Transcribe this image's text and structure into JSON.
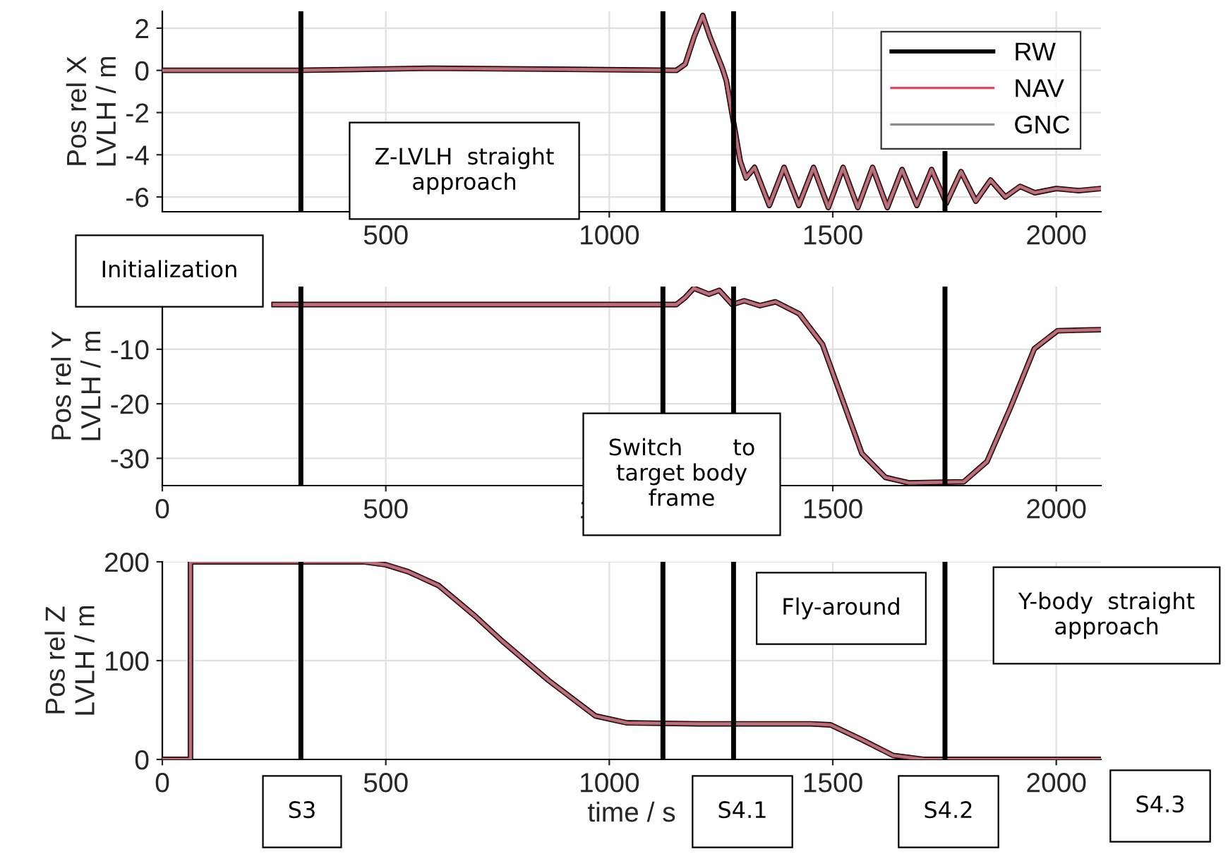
{
  "chart_data": [
    {
      "type": "line",
      "ylabel": "Pos rel X\nLVLH / m",
      "xlim": [
        0,
        2100
      ],
      "xticks": [
        500,
        1000,
        1500,
        2000
      ],
      "ylim": [
        -6.7,
        2.8
      ],
      "yticks": [
        -6,
        -4,
        -2,
        0,
        2
      ],
      "grid": true,
      "legend": "top right",
      "line_style": "solid",
      "x": [
        0,
        300,
        600,
        900,
        1150,
        1170,
        1190,
        1209,
        1225,
        1253,
        1262,
        1293,
        1306,
        1325,
        1358,
        1391,
        1424,
        1457,
        1490,
        1523,
        1556,
        1589,
        1622,
        1655,
        1688,
        1721,
        1754,
        1787,
        1820,
        1853,
        1886,
        1919,
        1952,
        2000,
        2050,
        2100
      ],
      "series": [
        {
          "name": "RW",
          "color": "#000000",
          "values": [
            0,
            0,
            0.1,
            0.05,
            0,
            0.3,
            1.6,
            2.6,
            1.6,
            0.1,
            -0.5,
            -4.3,
            -5.1,
            -4.6,
            -6.4,
            -4.6,
            -6.4,
            -4.6,
            -6.5,
            -4.6,
            -6.5,
            -4.6,
            -6.5,
            -4.7,
            -6.4,
            -4.7,
            -6.3,
            -4.8,
            -6.2,
            -5.2,
            -6.0,
            -5.5,
            -5.8,
            -5.6,
            -5.7,
            -5.6
          ]
        },
        {
          "name": "NAV",
          "color": "#e8455f",
          "values": [
            0,
            0,
            0.1,
            0.05,
            0,
            0.3,
            1.6,
            2.6,
            1.6,
            0.1,
            -0.5,
            -4.3,
            -5.1,
            -4.6,
            -6.4,
            -4.6,
            -6.4,
            -4.6,
            -6.5,
            -4.6,
            -6.5,
            -4.6,
            -6.5,
            -4.7,
            -6.4,
            -4.7,
            -6.3,
            -4.8,
            -6.2,
            -5.2,
            -6.0,
            -5.5,
            -5.8,
            -5.6,
            -5.7,
            -5.6
          ]
        },
        {
          "name": "GNC",
          "color": "#8c8c8c",
          "values": [
            0,
            0,
            0.1,
            0.05,
            0,
            0.3,
            1.6,
            2.6,
            1.6,
            0.1,
            -0.5,
            -4.3,
            -5.1,
            -4.6,
            -6.4,
            -4.6,
            -6.4,
            -4.6,
            -6.5,
            -4.6,
            -6.5,
            -4.6,
            -6.5,
            -4.7,
            -6.4,
            -4.7,
            -6.3,
            -4.8,
            -6.2,
            -5.2,
            -6.0,
            -5.5,
            -5.8,
            -5.6,
            -5.7,
            -5.6
          ]
        }
      ],
      "ref_lines": [
        {
          "axis": "x",
          "value": 310,
          "color": "#000000"
        },
        {
          "axis": "x",
          "value": 1120,
          "color": "#000000"
        },
        {
          "axis": "x",
          "value": 1278,
          "color": "#000000"
        },
        {
          "axis": "x",
          "value": 1751,
          "color": "#000000"
        }
      ],
      "annotations": [
        "Z-LVLH  straight\napproach",
        "Initialization"
      ]
    },
    {
      "type": "line",
      "ylabel": "Pos rel Y\nLVLH / m",
      "xlim": [
        0,
        2100
      ],
      "xticks": [
        0,
        500,
        1000,
        1500,
        2000
      ],
      "ylim": [
        -35,
        1.5
      ],
      "yticks": [
        -30,
        -20,
        -10
      ],
      "grid": true,
      "line_style": "solid",
      "x": [
        250,
        1150,
        1170,
        1189,
        1223,
        1246,
        1275,
        1302,
        1337,
        1372,
        1425,
        1477,
        1521,
        1565,
        1618,
        1670,
        1793,
        1845,
        1898,
        1951,
        2003,
        2100
      ],
      "series": [
        {
          "color": "#000000",
          "values": [
            -1.8,
            -1.8,
            -0.5,
            1.2,
            0.1,
            0.8,
            -1.8,
            -1.1,
            -2.0,
            -1.3,
            -3.5,
            -9.1,
            -19.1,
            -29.1,
            -33.5,
            -34.5,
            -34.3,
            -30.6,
            -20.6,
            -9.9,
            -6.6,
            -6.4
          ]
        },
        {
          "color": "#e8455f",
          "values": [
            -1.8,
            -1.8,
            -0.5,
            1.2,
            0.1,
            0.8,
            -1.8,
            -1.1,
            -2.0,
            -1.3,
            -3.5,
            -9.1,
            -19.1,
            -29.1,
            -33.5,
            -34.5,
            -34.3,
            -30.6,
            -20.6,
            -9.9,
            -6.6,
            -6.4
          ]
        },
        {
          "color": "#8c8c8c",
          "values": [
            -1.8,
            -1.8,
            -0.5,
            1.2,
            0.1,
            0.8,
            -1.8,
            -1.1,
            -2.0,
            -1.3,
            -3.5,
            -9.1,
            -19.1,
            -29.1,
            -33.5,
            -34.5,
            -34.3,
            -30.6,
            -20.6,
            -9.9,
            -6.6,
            -6.4
          ]
        }
      ],
      "ref_lines": [
        {
          "axis": "x",
          "value": 310,
          "color": "#000000"
        },
        {
          "axis": "x",
          "value": 1120,
          "color": "#000000"
        },
        {
          "axis": "x",
          "value": 1278,
          "color": "#000000"
        },
        {
          "axis": "x",
          "value": 1751,
          "color": "#000000"
        }
      ],
      "annotations": [
        "Switch       to\ntarget body\nframe"
      ]
    },
    {
      "type": "line",
      "ylabel": "Pos rel Z\nLVLH / m",
      "xlabel": "time / s",
      "xlim": [
        0,
        2100
      ],
      "xticks": [
        0,
        500,
        1000,
        1500,
        2000
      ],
      "ylim": [
        0,
        200
      ],
      "yticks": [
        0,
        100,
        200
      ],
      "grid": true,
      "line_style": "solid",
      "x": [
        0,
        63,
        63,
        450,
        500,
        550,
        618,
        700,
        760,
        864,
        969,
        1040,
        1200,
        1450,
        1495,
        1565,
        1635,
        1705,
        2100
      ],
      "series": [
        {
          "color": "#000000",
          "values": [
            0,
            0,
            200,
            200,
            197,
            190,
            176,
            145,
            120,
            80,
            44,
            37,
            36,
            36,
            35,
            20,
            4,
            0,
            0
          ]
        },
        {
          "color": "#e8455f",
          "values": [
            0,
            0,
            200,
            200,
            197,
            190,
            176,
            145,
            120,
            80,
            44,
            37,
            36,
            36,
            35,
            20,
            4,
            0,
            0
          ]
        },
        {
          "color": "#8c8c8c",
          "values": [
            0,
            0,
            200,
            200,
            197,
            190,
            176,
            145,
            120,
            80,
            44,
            37,
            36,
            36,
            35,
            20,
            4,
            0,
            0
          ]
        }
      ],
      "ref_lines": [
        {
          "axis": "x",
          "value": 310,
          "color": "#000000"
        },
        {
          "axis": "x",
          "value": 1120,
          "color": "#000000"
        },
        {
          "axis": "x",
          "value": 1278,
          "color": "#000000"
        },
        {
          "axis": "x",
          "value": 1751,
          "color": "#000000"
        }
      ],
      "annotations": [
        "Fly-around",
        "Y-body  straight\napproach",
        "S3",
        "S4.1",
        "S4.2",
        "S4.3"
      ]
    }
  ]
}
